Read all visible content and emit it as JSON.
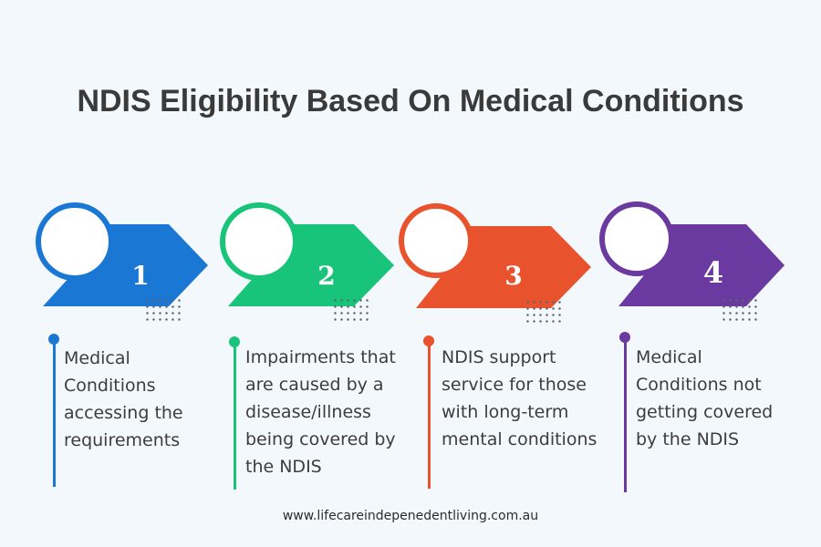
{
  "title": "NDIS Eligibility Based On Medical Conditions",
  "steps": [
    {
      "number": "1",
      "color": "#1a77d4",
      "lines": [
        "Medical",
        "Conditions",
        "accessing the",
        "requirements"
      ]
    },
    {
      "number": "2",
      "color": "#18c47a",
      "lines": [
        "Impairments that",
        "are caused by a",
        "disease/illness",
        "being covered by",
        "the NDIS"
      ]
    },
    {
      "number": "3",
      "color": "#e8532e",
      "lines": [
        "NDIS support",
        "service for those",
        "with long-term",
        "mental conditions"
      ]
    },
    {
      "number": "4",
      "color": "#6a3aa0",
      "lines": [
        "Medical",
        "Conditions not",
        "getting covered",
        "by the NDIS"
      ]
    }
  ],
  "footer": "www.lifecareindepenedentliving.com.au"
}
